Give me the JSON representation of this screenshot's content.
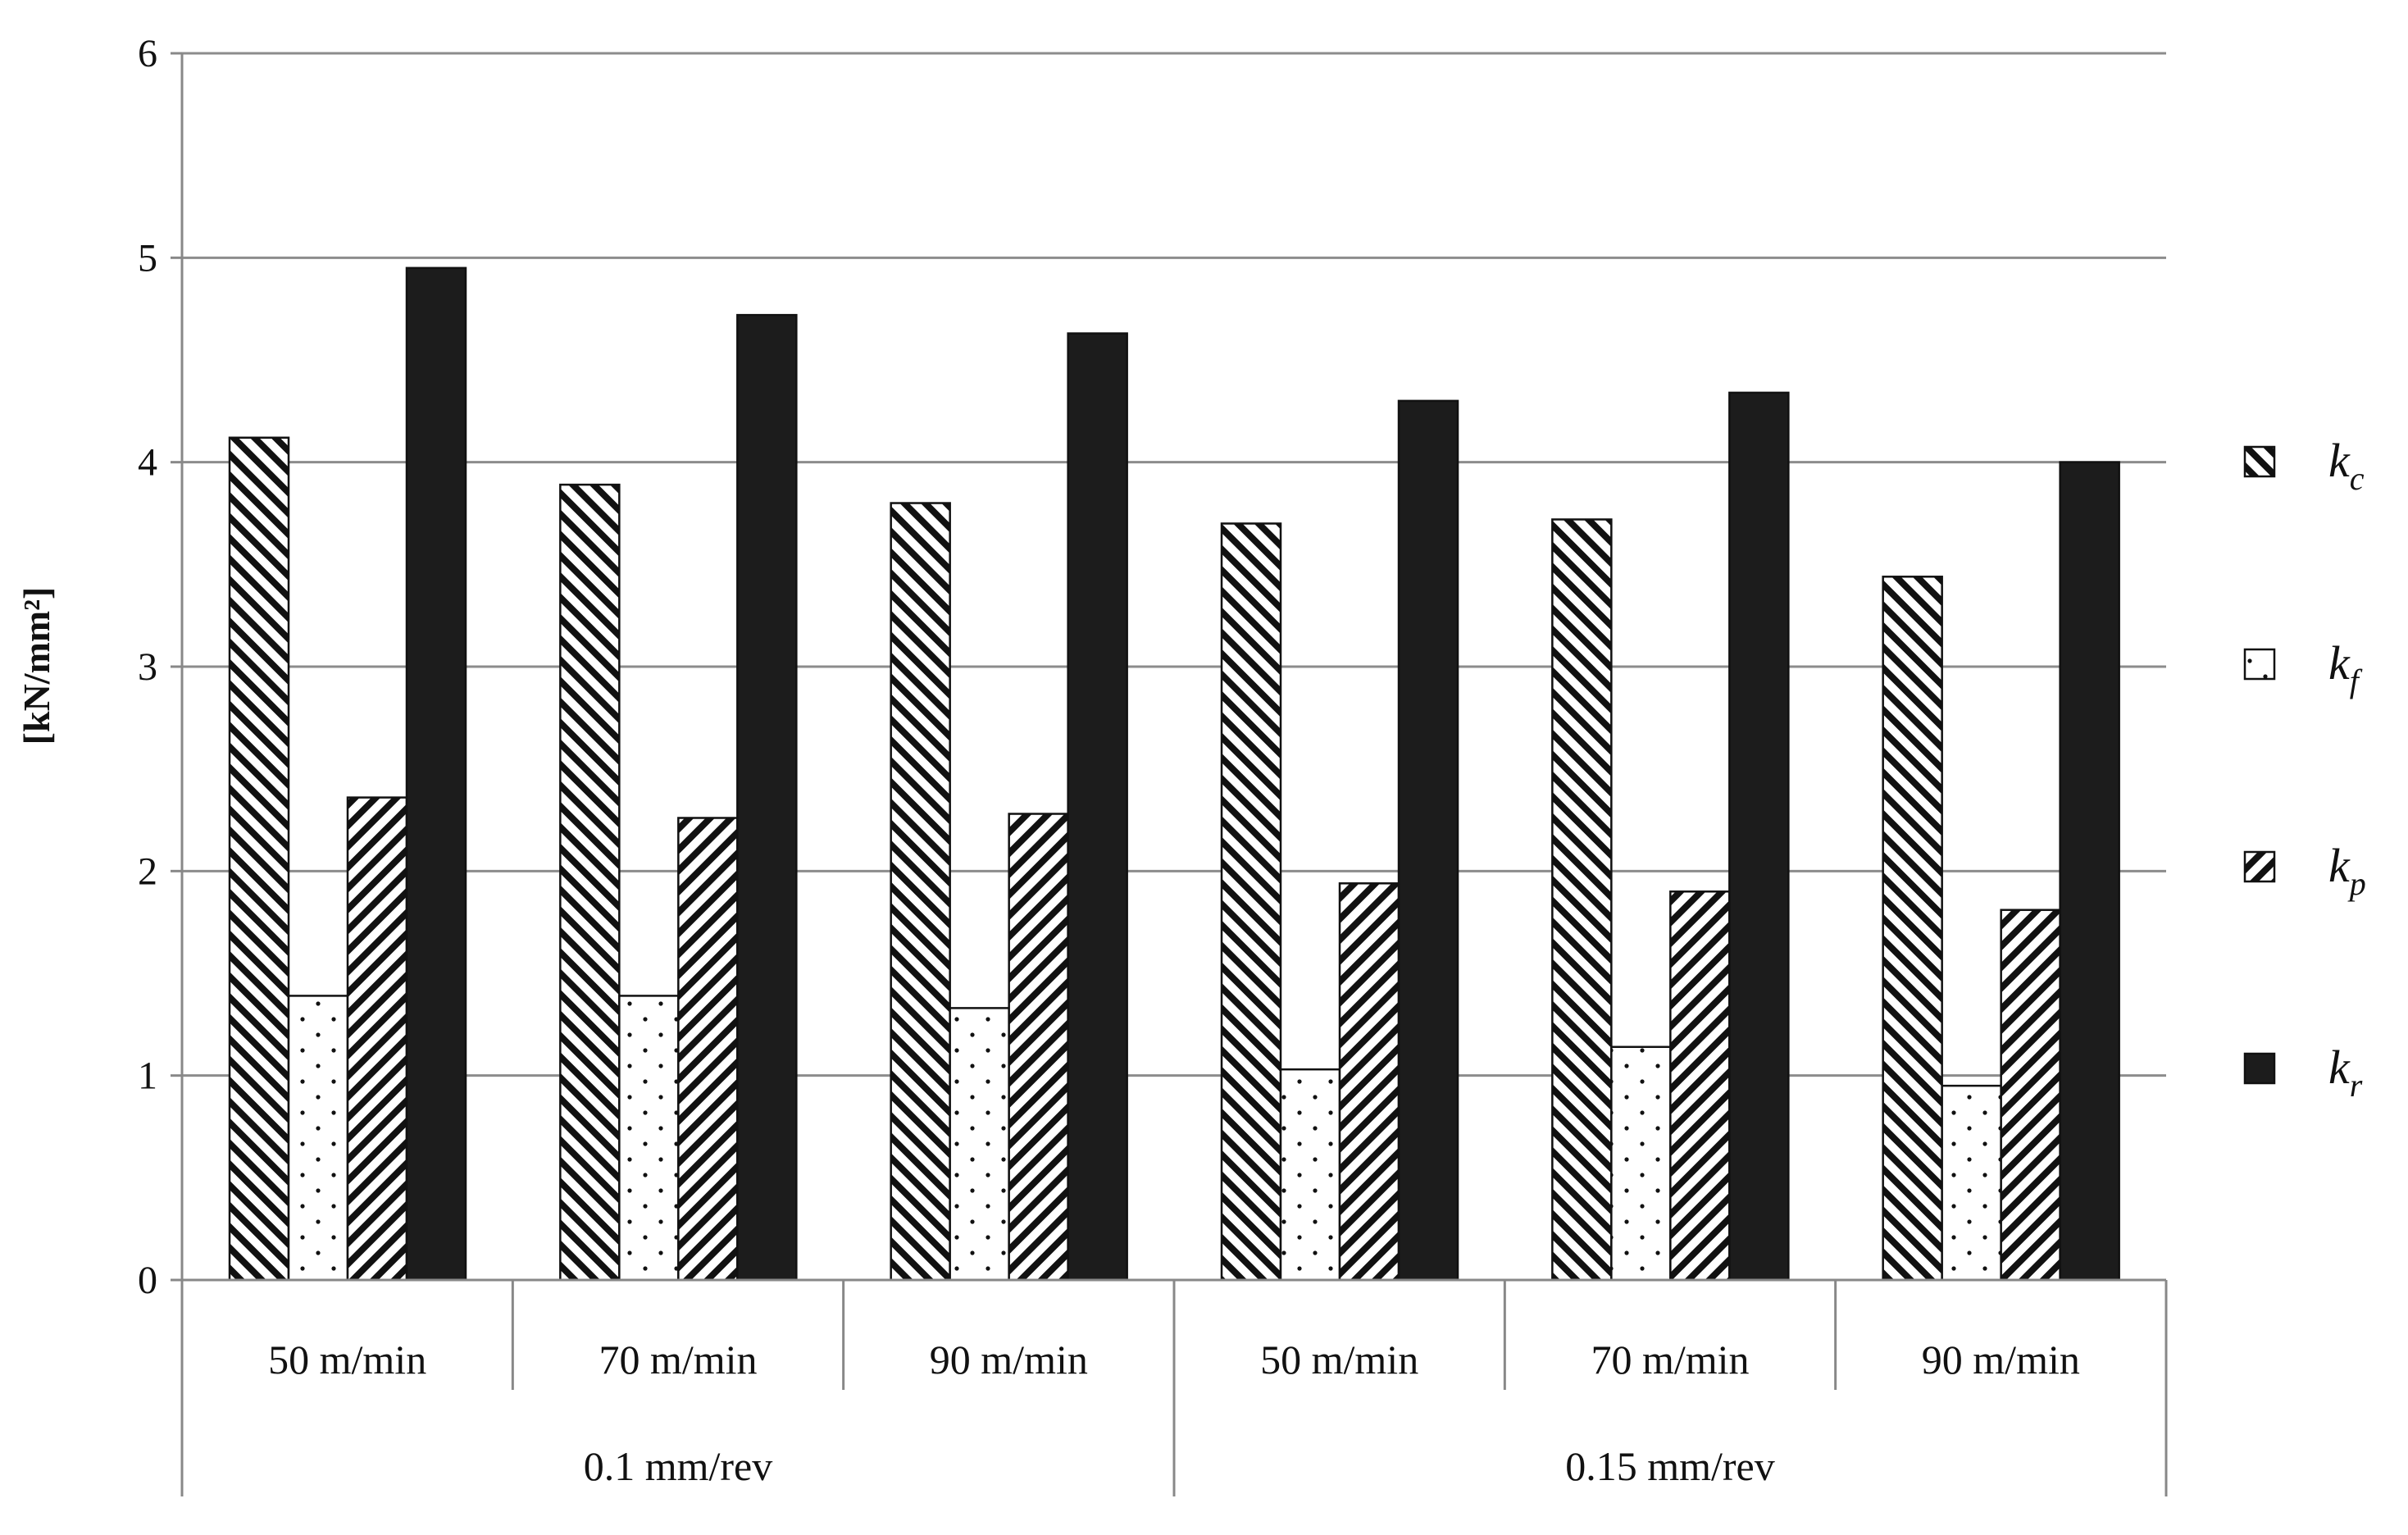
{
  "chart_data": {
    "type": "bar",
    "ylabel": "[kN/mm²]",
    "ylim": [
      0,
      6
    ],
    "yticks": [
      "0",
      "1",
      "2",
      "3",
      "4",
      "5",
      "6"
    ],
    "grid": true,
    "legend_position": "right",
    "categories": [
      "50 m/min",
      "70 m/min",
      "90 m/min",
      "50 m/min",
      "70 m/min",
      "90 m/min"
    ],
    "groups": [
      {
        "label": "0.1 mm/rev",
        "span": 3
      },
      {
        "label": "0.15 mm/rev",
        "span": 3
      }
    ],
    "series": [
      {
        "name": "k",
        "sub": "c",
        "pattern": "diag-fwd",
        "values": [
          4.12,
          3.89,
          3.8,
          3.7,
          3.72,
          3.44
        ]
      },
      {
        "name": "k",
        "sub": "f",
        "pattern": "dots",
        "values": [
          1.39,
          1.39,
          1.33,
          1.03,
          1.14,
          0.95
        ]
      },
      {
        "name": "k",
        "sub": "p",
        "pattern": "diag-back",
        "values": [
          2.36,
          2.26,
          2.28,
          1.94,
          1.9,
          1.81
        ]
      },
      {
        "name": "k",
        "sub": "r",
        "pattern": "solid",
        "values": [
          4.95,
          4.72,
          4.63,
          4.3,
          4.34,
          4.0
        ]
      }
    ],
    "colors": {
      "axis": "#888888",
      "grid": "#8c8c8c",
      "bar_stroke": "#111111",
      "solid": "#1c1c1c"
    }
  }
}
